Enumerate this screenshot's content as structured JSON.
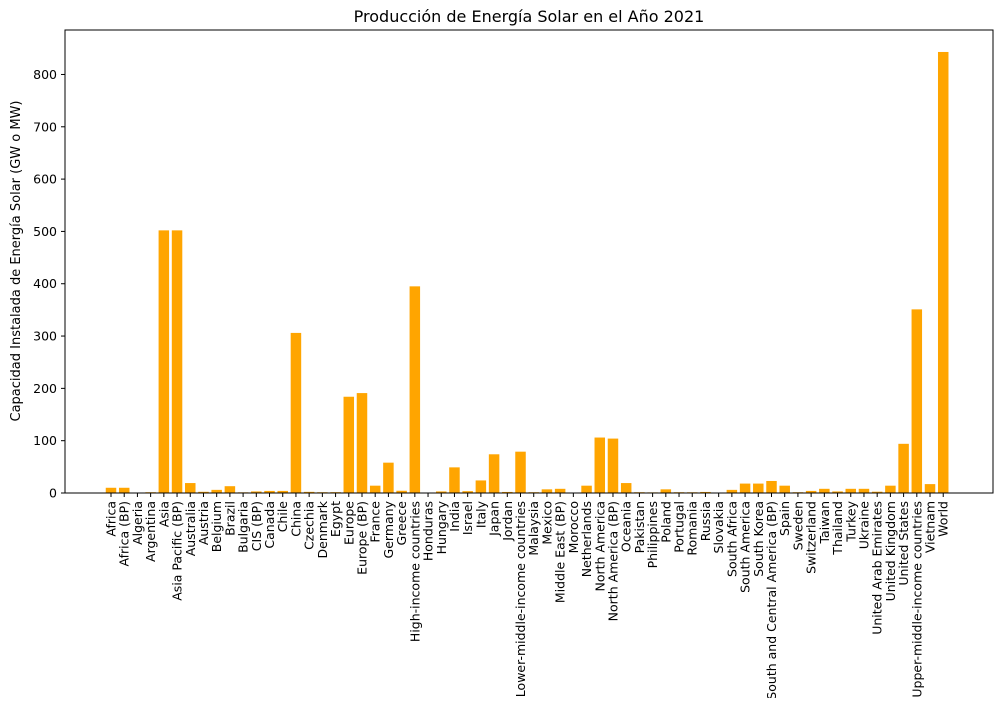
{
  "chart_data": {
    "type": "bar",
    "title": "Producción de Energía Solar en el Año 2021",
    "xlabel": "",
    "ylabel": "Capacidad Instalada de Energía Solar (GW o MW)",
    "ylim": [
      0,
      885
    ],
    "yticks": [
      0,
      100,
      200,
      300,
      400,
      500,
      600,
      700,
      800
    ],
    "grid": false,
    "bar_color": "#ffa500",
    "categories": [
      "Africa",
      "Africa (BP)",
      "Algeria",
      "Argentina",
      "Asia",
      "Asia Pacific (BP)",
      "Australia",
      "Austria",
      "Belgium",
      "Brazil",
      "Bulgaria",
      "CIS (BP)",
      "Canada",
      "Chile",
      "China",
      "Czechia",
      "Denmark",
      "Egypt",
      "Europe",
      "Europe (BP)",
      "France",
      "Germany",
      "Greece",
      "High-income countries",
      "Honduras",
      "Hungary",
      "India",
      "Israel",
      "Italy",
      "Japan",
      "Jordan",
      "Lower-middle-income countries",
      "Malaysia",
      "Mexico",
      "Middle East (BP)",
      "Morocco",
      "Netherlands",
      "North America",
      "North America (BP)",
      "Oceania",
      "Pakistan",
      "Philippines",
      "Poland",
      "Portugal",
      "Romania",
      "Russia",
      "Slovakia",
      "South Africa",
      "South America",
      "South Korea",
      "South and Central America (BP)",
      "Spain",
      "Sweden",
      "Switzerland",
      "Taiwan",
      "Thailand",
      "Turkey",
      "Ukraine",
      "United Arab Emirates",
      "United Kingdom",
      "United States",
      "Upper-middle-income countries",
      "Vietnam",
      "World"
    ],
    "values": [
      10,
      10,
      0.7,
      1.5,
      502,
      502,
      19,
      2.3,
      6,
      13,
      1.3,
      3,
      4,
      4,
      306,
      2.2,
      1.5,
      1.6,
      184,
      191,
      14,
      58,
      4.3,
      395,
      0.5,
      3,
      49,
      3.5,
      24,
      74,
      2,
      79,
      1.5,
      7,
      8,
      0.8,
      14,
      106,
      104,
      19,
      1.5,
      1.2,
      7,
      1.5,
      1.4,
      2,
      0.6,
      6,
      18,
      18,
      23,
      14,
      1.5,
      4,
      8,
      3,
      8,
      8,
      2.5,
      14,
      94,
      351,
      17,
      843
    ]
  }
}
